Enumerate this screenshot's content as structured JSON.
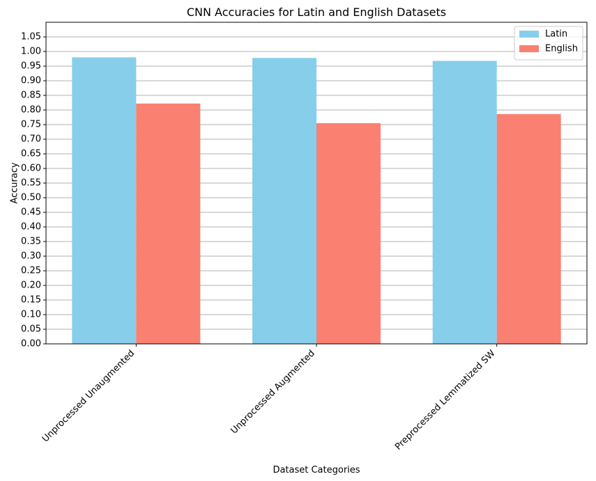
{
  "chart_data": {
    "type": "bar",
    "title": "CNN Accuracies for Latin and English Datasets",
    "xlabel": "Dataset Categories",
    "ylabel": "Accuracy",
    "categories": [
      "Unprocessed Unaugmented",
      "Unprocessed Augmented",
      "Preprocessed Lemmatized SW"
    ],
    "series": [
      {
        "name": "Latin",
        "values": [
          0.98,
          0.978,
          0.968
        ],
        "color": "#87CEEB"
      },
      {
        "name": "English",
        "values": [
          0.822,
          0.755,
          0.786
        ],
        "color": "#FA8072"
      }
    ],
    "ylim": [
      0,
      1.1
    ],
    "yticks": [
      "0.00",
      "0.05",
      "0.10",
      "0.15",
      "0.20",
      "0.25",
      "0.30",
      "0.35",
      "0.40",
      "0.45",
      "0.50",
      "0.55",
      "0.60",
      "0.65",
      "0.70",
      "0.75",
      "0.80",
      "0.85",
      "0.90",
      "0.95",
      "1.00",
      "1.05"
    ],
    "grid": "y",
    "legend_position": "top-right"
  }
}
